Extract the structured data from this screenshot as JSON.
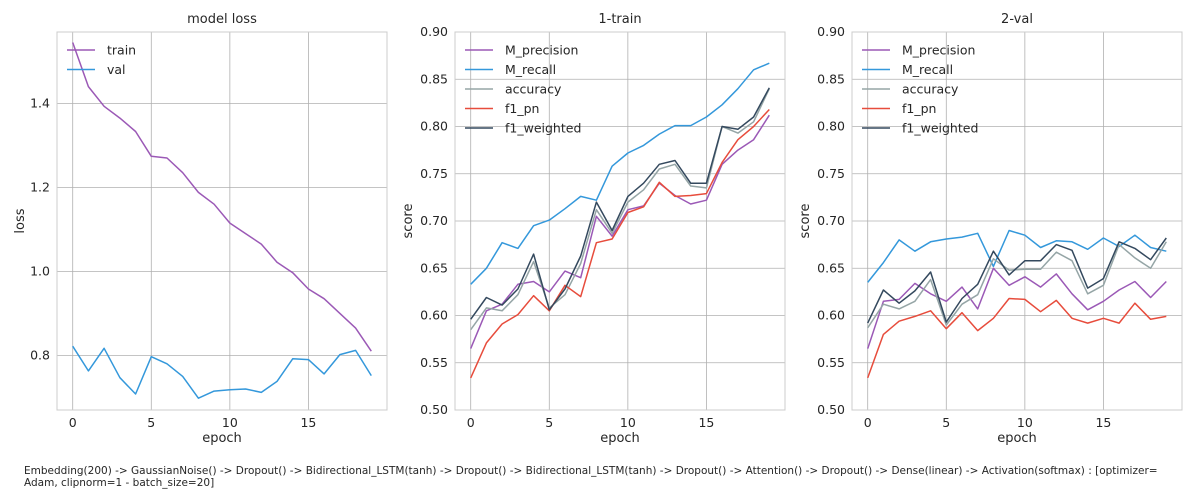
{
  "caption": "Embedding(200) -> GaussianNoise() -> Dropout() -> Bidirectional_LSTM(tanh) -> Dropout() -> Bidirectional_LSTM(tanh) -> Dropout() -> Attention() -> Dropout() -> Dense(linear) -> Activation(softmax) : [optimizer= Adam, clipnorm=1 - batch_size=20]",
  "colors": {
    "purple": "#9b59b6",
    "blue": "#3498db",
    "gray": "#95a5a6",
    "red": "#e74c3c",
    "dark": "#34495e",
    "grid": "#b0b0b0",
    "spine": "#cccccc"
  },
  "chart_data": [
    {
      "type": "line",
      "title": "model loss",
      "xlabel": "epoch",
      "ylabel": "loss",
      "xlim": [
        -1,
        20
      ],
      "ylim": [
        0.67,
        1.57
      ],
      "xticks": [
        0,
        5,
        10,
        15
      ],
      "yticks": [
        0.8,
        1.0,
        1.2,
        1.4
      ],
      "ytick_labels": [
        "0.8",
        "1.0",
        "1.2",
        "1.4"
      ],
      "grid": true,
      "legend": "top-left",
      "x": [
        0,
        1,
        2,
        3,
        4,
        5,
        6,
        7,
        8,
        9,
        10,
        11,
        12,
        13,
        14,
        15,
        16,
        17,
        18,
        19
      ],
      "series": [
        {
          "name": "train",
          "color": "#9b59b6",
          "values": [
            1.545,
            1.44,
            1.393,
            1.365,
            1.333,
            1.274,
            1.27,
            1.235,
            1.188,
            1.16,
            1.115,
            1.09,
            1.065,
            1.022,
            0.997,
            0.958,
            0.935,
            0.9,
            0.865,
            0.81
          ]
        },
        {
          "name": "val",
          "color": "#3498db",
          "values": [
            0.822,
            0.763,
            0.817,
            0.747,
            0.708,
            0.797,
            0.78,
            0.75,
            0.698,
            0.715,
            0.718,
            0.72,
            0.712,
            0.738,
            0.792,
            0.79,
            0.756,
            0.802,
            0.812,
            0.752
          ]
        }
      ]
    },
    {
      "type": "line",
      "title": "1-train",
      "xlabel": "epoch",
      "ylabel": "score",
      "xlim": [
        -1,
        20
      ],
      "ylim": [
        0.5,
        0.9
      ],
      "xticks": [
        0,
        5,
        10,
        15
      ],
      "yticks": [
        0.5,
        0.55,
        0.6,
        0.65,
        0.7,
        0.75,
        0.8,
        0.85,
        0.9
      ],
      "ytick_labels": [
        "0.50",
        "0.55",
        "0.60",
        "0.65",
        "0.70",
        "0.75",
        "0.80",
        "0.85",
        "0.90"
      ],
      "grid": true,
      "legend": "top-left",
      "x": [
        0,
        1,
        2,
        3,
        4,
        5,
        6,
        7,
        8,
        9,
        10,
        11,
        12,
        13,
        14,
        15,
        16,
        17,
        18,
        19
      ],
      "series": [
        {
          "name": "M_precision",
          "color": "#9b59b6",
          "values": [
            0.565,
            0.605,
            0.612,
            0.633,
            0.636,
            0.625,
            0.647,
            0.64,
            0.705,
            0.684,
            0.712,
            0.716,
            0.74,
            0.727,
            0.718,
            0.722,
            0.76,
            0.775,
            0.786,
            0.812
          ]
        },
        {
          "name": "M_recall",
          "color": "#3498db",
          "values": [
            0.633,
            0.65,
            0.677,
            0.671,
            0.695,
            0.701,
            0.713,
            0.726,
            0.722,
            0.758,
            0.772,
            0.78,
            0.792,
            0.801,
            0.801,
            0.81,
            0.823,
            0.84,
            0.86,
            0.867
          ]
        },
        {
          "name": "accuracy",
          "color": "#95a5a6",
          "values": [
            0.585,
            0.608,
            0.605,
            0.622,
            0.657,
            0.608,
            0.622,
            0.655,
            0.712,
            0.687,
            0.72,
            0.733,
            0.755,
            0.76,
            0.737,
            0.735,
            0.8,
            0.793,
            0.805,
            0.84
          ]
        },
        {
          "name": "f1_pn",
          "color": "#e74c3c",
          "values": [
            0.534,
            0.571,
            0.591,
            0.601,
            0.621,
            0.605,
            0.632,
            0.62,
            0.677,
            0.681,
            0.709,
            0.715,
            0.741,
            0.726,
            0.727,
            0.729,
            0.762,
            0.786,
            0.8,
            0.818
          ]
        },
        {
          "name": "f1_weighted",
          "color": "#34495e",
          "values": [
            0.596,
            0.619,
            0.611,
            0.628,
            0.665,
            0.606,
            0.628,
            0.663,
            0.72,
            0.69,
            0.726,
            0.74,
            0.76,
            0.764,
            0.74,
            0.74,
            0.8,
            0.797,
            0.81,
            0.841
          ]
        }
      ]
    },
    {
      "type": "line",
      "title": "2-val",
      "xlabel": "epoch",
      "ylabel": "score",
      "xlim": [
        -1,
        20
      ],
      "ylim": [
        0.5,
        0.9
      ],
      "xticks": [
        0,
        5,
        10,
        15
      ],
      "yticks": [
        0.5,
        0.55,
        0.6,
        0.65,
        0.7,
        0.75,
        0.8,
        0.85,
        0.9
      ],
      "ytick_labels": [
        "0.50",
        "0.55",
        "0.60",
        "0.65",
        "0.70",
        "0.75",
        "0.80",
        "0.85",
        "0.90"
      ],
      "grid": true,
      "legend": "top-left",
      "x": [
        0,
        1,
        2,
        3,
        4,
        5,
        6,
        7,
        8,
        9,
        10,
        11,
        12,
        13,
        14,
        15,
        16,
        17,
        18,
        19
      ],
      "series": [
        {
          "name": "M_precision",
          "color": "#9b59b6",
          "values": [
            0.565,
            0.615,
            0.617,
            0.634,
            0.623,
            0.615,
            0.63,
            0.607,
            0.65,
            0.632,
            0.641,
            0.63,
            0.644,
            0.623,
            0.606,
            0.615,
            0.627,
            0.636,
            0.619,
            0.636
          ]
        },
        {
          "name": "M_recall",
          "color": "#3498db",
          "values": [
            0.635,
            0.656,
            0.68,
            0.668,
            0.678,
            0.681,
            0.683,
            0.687,
            0.652,
            0.69,
            0.685,
            0.672,
            0.679,
            0.678,
            0.67,
            0.682,
            0.673,
            0.685,
            0.672,
            0.668
          ]
        },
        {
          "name": "accuracy",
          "color": "#95a5a6",
          "values": [
            0.587,
            0.612,
            0.607,
            0.615,
            0.638,
            0.59,
            0.612,
            0.622,
            0.66,
            0.648,
            0.649,
            0.649,
            0.667,
            0.658,
            0.623,
            0.632,
            0.675,
            0.661,
            0.65,
            0.678
          ]
        },
        {
          "name": "f1_pn",
          "color": "#e74c3c",
          "values": [
            0.534,
            0.58,
            0.594,
            0.599,
            0.605,
            0.586,
            0.603,
            0.584,
            0.597,
            0.618,
            0.617,
            0.604,
            0.616,
            0.597,
            0.592,
            0.597,
            0.592,
            0.613,
            0.596,
            0.599
          ]
        },
        {
          "name": "f1_weighted",
          "color": "#34495e",
          "values": [
            0.592,
            0.627,
            0.613,
            0.626,
            0.646,
            0.593,
            0.618,
            0.633,
            0.668,
            0.643,
            0.658,
            0.658,
            0.675,
            0.669,
            0.629,
            0.639,
            0.678,
            0.671,
            0.659,
            0.682
          ]
        }
      ]
    }
  ]
}
